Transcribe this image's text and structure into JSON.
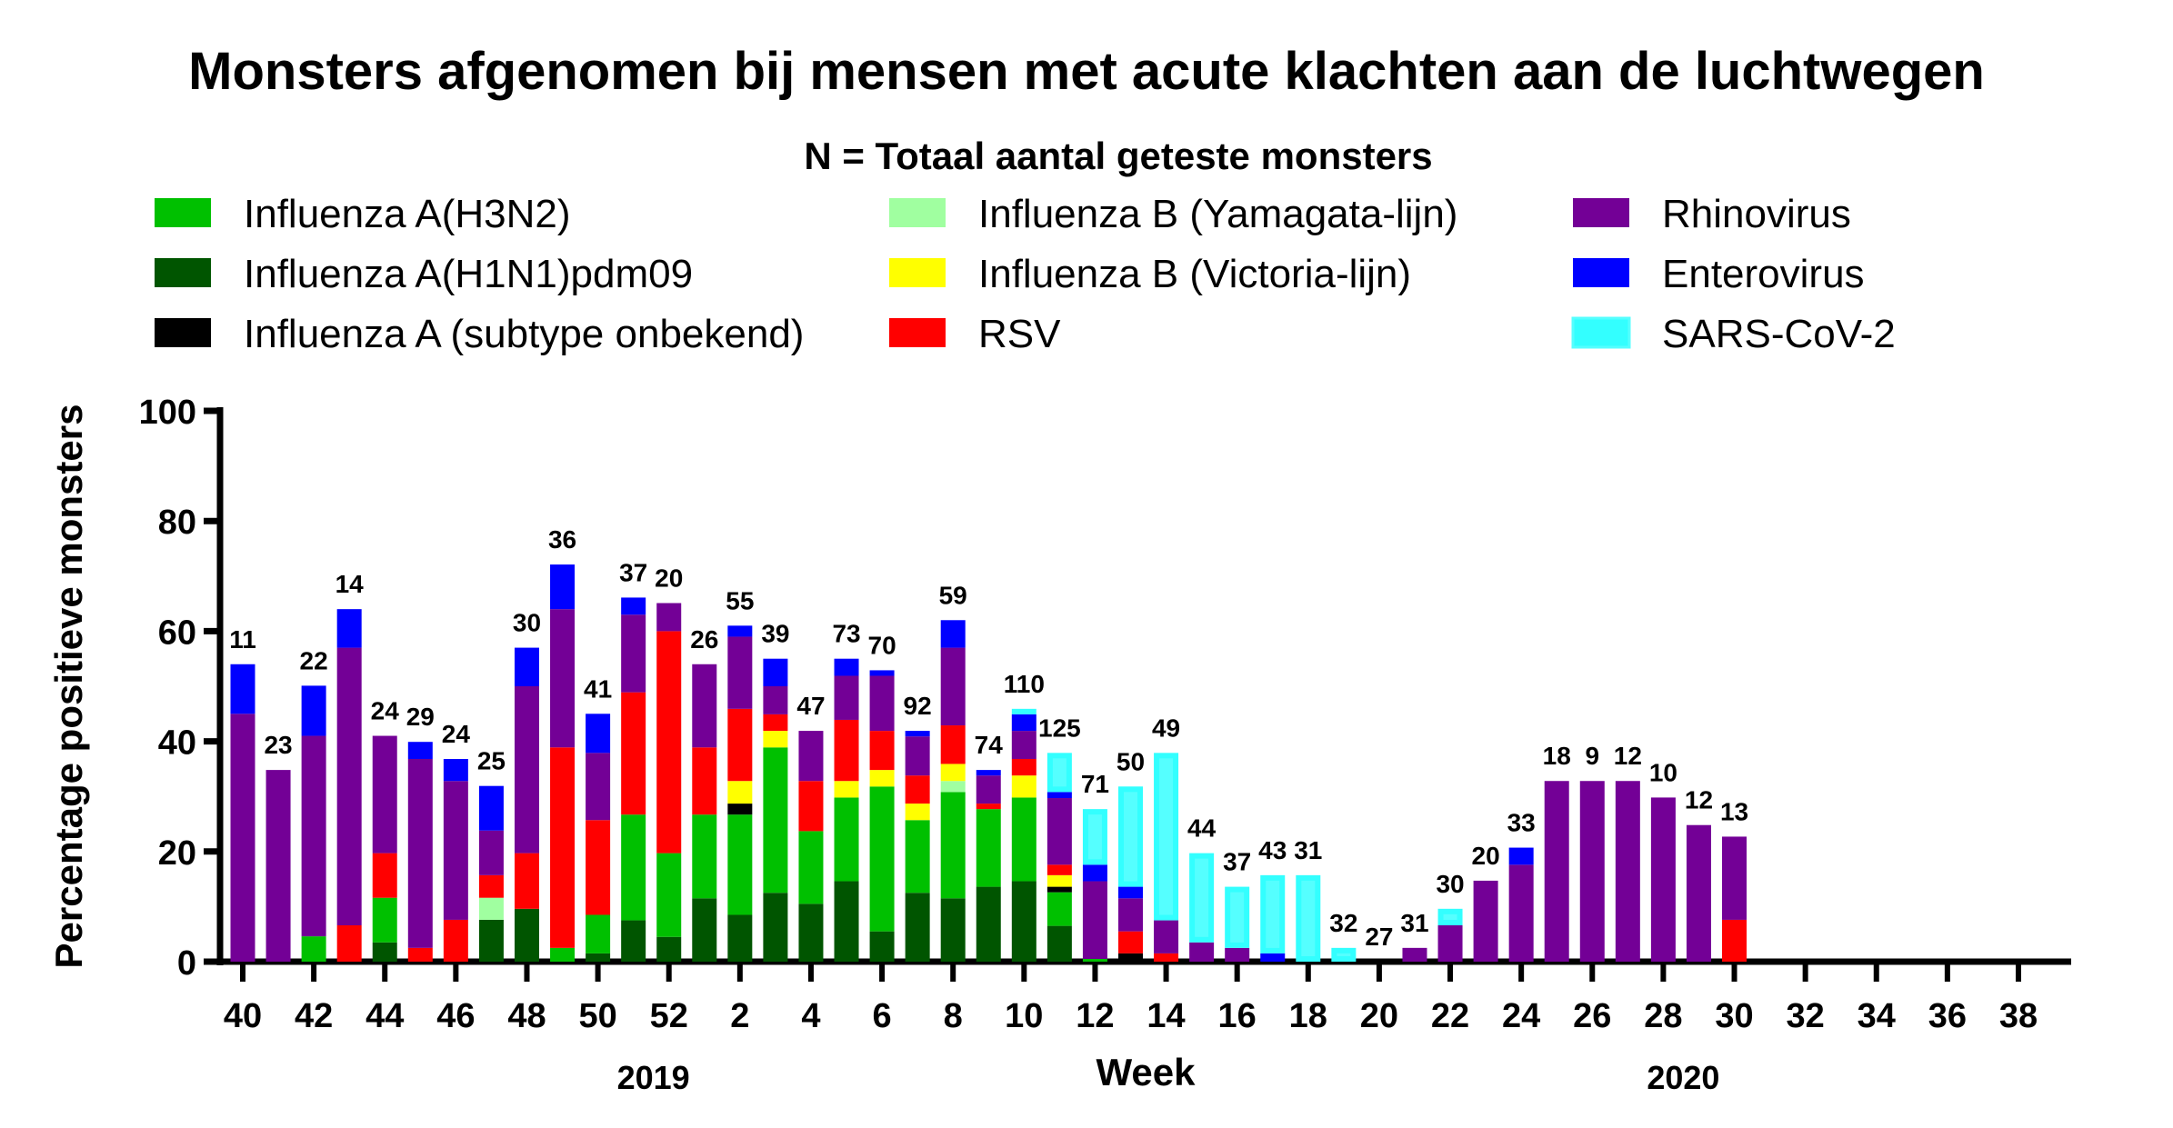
{
  "chart_data": {
    "type": "bar",
    "stacked": true,
    "title": "Monsters afgenomen bij mensen met acute klachten aan de luchtwegen",
    "subtitle": "N = Totaal aantal geteste monsters",
    "xlabel": "Week",
    "ylabel": "Percentage positieve monsters",
    "ylim": [
      0,
      100
    ],
    "yticks": [
      0,
      20,
      40,
      60,
      80,
      100
    ],
    "xticks": [
      "40",
      "42",
      "44",
      "46",
      "48",
      "50",
      "52",
      "2",
      "4",
      "6",
      "8",
      "10",
      "12",
      "14",
      "16",
      "18",
      "20",
      "22",
      "24",
      "26",
      "28",
      "30",
      "32",
      "34",
      "36",
      "38"
    ],
    "year_labels": [
      {
        "label": "2019",
        "at_week": "51"
      },
      {
        "label": "2020",
        "at_week": "28"
      }
    ],
    "categories": [
      "40",
      "41",
      "42",
      "43",
      "44",
      "45",
      "46",
      "47",
      "48",
      "49",
      "50",
      "51",
      "52",
      "1",
      "2",
      "3",
      "4",
      "5",
      "6",
      "7",
      "8",
      "9",
      "10",
      "11",
      "12",
      "13",
      "14",
      "15",
      "16",
      "17",
      "18",
      "19",
      "20",
      "21",
      "22",
      "23",
      "24",
      "25",
      "26",
      "27",
      "28",
      "29",
      "30",
      "31",
      "32",
      "33",
      "34",
      "35",
      "36",
      "37",
      "38",
      "39"
    ],
    "n_labels": [
      "11",
      "23",
      "22",
      "14",
      "24",
      "29",
      "24",
      "25",
      "30",
      "36",
      "41",
      "37",
      "20",
      "26",
      "55",
      "39",
      "47",
      "73",
      "70",
      "92",
      "59",
      "74",
      "110",
      "125",
      "71",
      "50",
      "49",
      "44",
      "37",
      "43",
      "31",
      "32",
      "27",
      "31",
      "30",
      "20",
      "33",
      "18",
      "9",
      "12",
      "10",
      "12",
      "13",
      "",
      "",
      "",
      "",
      "",
      "",
      "",
      "",
      ""
    ],
    "legend": [
      {
        "name": "Influenza A(H3N2)",
        "color": "#00c000"
      },
      {
        "name": "Influenza A(H1N1)pdm09",
        "color": "#005500"
      },
      {
        "name": "Influenza A (subtype onbekend)",
        "color": "#000000"
      },
      {
        "name": "Influenza B (Yamagata-lijn)",
        "color": "#a0ffa0"
      },
      {
        "name": "Influenza B (Victoria-lijn)",
        "color": "#ffff00"
      },
      {
        "name": "RSV",
        "color": "#ff0000"
      },
      {
        "name": "Rhinovirus",
        "color": "#730096"
      },
      {
        "name": "Enterovirus",
        "color": "#0000ff"
      },
      {
        "name": "SARS-CoV-2",
        "color": "#33ffff"
      }
    ],
    "series": [
      {
        "name": "Influenza A(H1N1)pdm09",
        "color": "#005500",
        "values": [
          0,
          0,
          0,
          0,
          3.5,
          0,
          0,
          7.6,
          9.6,
          0,
          1.5,
          7.5,
          4.5,
          11.5,
          8.5,
          12.5,
          10.5,
          14.6,
          5.5,
          12.5,
          11.5,
          13.6,
          14.6,
          6.5,
          0,
          0,
          0,
          0,
          0,
          0,
          0,
          0,
          0,
          0,
          0,
          0,
          0,
          0,
          0,
          0,
          0,
          0,
          0,
          0,
          0,
          0,
          0,
          0,
          0,
          0,
          0,
          0
        ]
      },
      {
        "name": "Influenza A(H3N2)",
        "color": "#00c000",
        "values": [
          0,
          0,
          4.6,
          0,
          8.1,
          0,
          0,
          0,
          0,
          2.5,
          7,
          19.2,
          15.2,
          15.2,
          18.2,
          26.4,
          13.2,
          15.2,
          26.3,
          13.2,
          19.3,
          14.1,
          15.2,
          6.1,
          0.5,
          0,
          0,
          0,
          0,
          0,
          0,
          0,
          0,
          0,
          0,
          0,
          0,
          0,
          0,
          0,
          0,
          0,
          0,
          0,
          0,
          0,
          0,
          0,
          0,
          0,
          0,
          0
        ]
      },
      {
        "name": "Influenza A (subtype onbekend)",
        "color": "#000000",
        "values": [
          0,
          0,
          0,
          0,
          0,
          0,
          0,
          0,
          0,
          0,
          0,
          0,
          0,
          0,
          2,
          0,
          0,
          0,
          0,
          0,
          0,
          0,
          0,
          1,
          0,
          1.5,
          0,
          0,
          0,
          0,
          0,
          0,
          0,
          0,
          0,
          0,
          0,
          0,
          0,
          0,
          0,
          0,
          0,
          0,
          0,
          0,
          0,
          0,
          0,
          0,
          0,
          0
        ]
      },
      {
        "name": "Influenza B (Yamagata-lijn)",
        "color": "#a0ffa0",
        "values": [
          0,
          0,
          0,
          0,
          0,
          0,
          0,
          4,
          0,
          0,
          0,
          0,
          0,
          0,
          0,
          0,
          0,
          0,
          0,
          0,
          2,
          0,
          0,
          0,
          0,
          0,
          0,
          0,
          0,
          0,
          0,
          0,
          0,
          0,
          0,
          0,
          0,
          0,
          0,
          0,
          0,
          0,
          0,
          0,
          0,
          0,
          0,
          0,
          0,
          0,
          0,
          0
        ]
      },
      {
        "name": "Influenza B (Victoria-lijn)",
        "color": "#ffff00",
        "values": [
          0,
          0,
          0,
          0,
          0,
          0,
          0,
          0,
          0,
          0,
          0,
          0,
          0,
          0,
          4.1,
          3,
          0,
          3,
          3,
          3,
          3.1,
          0,
          4,
          2.1,
          0,
          0,
          0,
          0,
          0,
          0,
          0,
          0,
          0,
          0,
          0,
          0,
          0,
          0,
          0,
          0,
          0,
          0,
          0,
          0,
          0,
          0,
          0,
          0,
          0,
          0,
          0,
          0
        ]
      },
      {
        "name": "RSV",
        "color": "#ff0000",
        "values": [
          0,
          0,
          0,
          6.6,
          8.1,
          2.5,
          7.6,
          4.1,
          10.1,
          36.4,
          17.2,
          22.2,
          40.3,
          12.2,
          13.1,
          3,
          9.1,
          11.1,
          7.1,
          5.1,
          7,
          1,
          3,
          1.9,
          0,
          4,
          1.5,
          0,
          0,
          0,
          0,
          0,
          0,
          0,
          0,
          0,
          0,
          0,
          0,
          0,
          0,
          0,
          7.6,
          0,
          0,
          0,
          0,
          0,
          0,
          0,
          0,
          0
        ]
      },
      {
        "name": "Rhinovirus",
        "color": "#730096",
        "values": [
          45,
          34.8,
          36.4,
          50.4,
          21.3,
          34.3,
          25.2,
          8.1,
          30.3,
          25.1,
          12.2,
          14.1,
          5.1,
          15.1,
          13.1,
          5.1,
          9.1,
          8,
          10,
          7.1,
          14.1,
          5.1,
          5.1,
          12.1,
          14.1,
          6,
          6,
          3.5,
          2.5,
          0,
          0,
          0,
          0,
          2.5,
          6.6,
          14.7,
          17.6,
          32.8,
          32.8,
          32.8,
          29.8,
          24.8,
          15.1,
          0,
          0,
          0,
          0,
          0,
          0,
          0,
          0,
          0
        ]
      },
      {
        "name": "Enterovirus",
        "color": "#0000ff",
        "values": [
          9,
          0,
          9.1,
          7,
          0,
          3.1,
          4,
          8.1,
          7,
          8.1,
          7.1,
          3.1,
          0,
          0,
          2,
          5,
          0,
          3.1,
          1,
          1,
          5,
          1,
          3,
          1.1,
          3,
          2.1,
          0,
          0,
          0,
          1.5,
          0,
          0,
          0,
          0,
          0,
          0,
          3.1,
          0,
          0,
          0,
          0,
          0,
          0,
          0,
          0,
          0,
          0,
          0,
          0,
          0,
          0,
          0
        ]
      },
      {
        "name": "SARS-CoV-2",
        "color": "#33ffff",
        "values": [
          0,
          0,
          0,
          0,
          0,
          0,
          0,
          0,
          0,
          0,
          0,
          0,
          0,
          0,
          0,
          0,
          0,
          0,
          0,
          0,
          0,
          0,
          1,
          7.1,
          10.1,
          18.2,
          30.4,
          16.2,
          11.1,
          14.2,
          15.7,
          2.5,
          0,
          0,
          3,
          0,
          0,
          0,
          0,
          0,
          0,
          0,
          0,
          0,
          0,
          0,
          0,
          0,
          0,
          0,
          0,
          0
        ]
      }
    ],
    "grid": false,
    "legend_position": "top"
  }
}
